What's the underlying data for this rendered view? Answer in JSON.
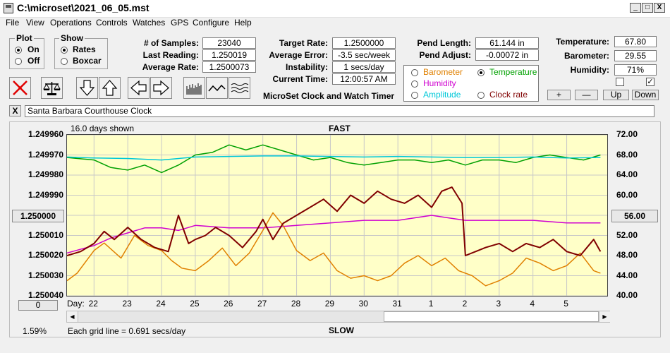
{
  "window": {
    "title": "C:\\microset\\2021_06_05.mst",
    "controls": {
      "minimize": "_",
      "maximize": "□",
      "close": "X"
    }
  },
  "menu": [
    "File",
    "View",
    "Operations",
    "Controls",
    "Watches",
    "GPS",
    "Configure",
    "Help"
  ],
  "plot_group": {
    "title": "Plot",
    "options": [
      "On",
      "Off"
    ],
    "selected": "On"
  },
  "show_group": {
    "title": "Show",
    "options": [
      "Rates",
      "Boxcar"
    ],
    "selected": "Rates"
  },
  "readouts": {
    "samples_label": "# of Samples:",
    "samples": "23040",
    "last_reading_label": "Last Reading:",
    "last_reading": "1.250019",
    "average_rate_label": "Average Rate:",
    "average_rate": "1.2500073",
    "target_rate_label": "Target Rate:",
    "target_rate": "1.2500000",
    "average_error_label": "Average Error:",
    "average_error": "-3.5 sec/week",
    "instability_label": "Instability:",
    "instability": "1 secs/day",
    "current_time_label": "Current Time:",
    "current_time": "12:00:57 AM",
    "pend_length_label": "Pend Length:",
    "pend_length": "61.144 in",
    "pend_adjust_label": "Pend Adjust:",
    "pend_adjust": "-0.00072 in",
    "temperature_label": "Temperature:",
    "temperature": "67.80",
    "barometer_label": "Barometer:",
    "barometer": "29.55",
    "humidity_label": "Humidity:",
    "humidity": "71%"
  },
  "app_caption": "MicroSet Clock and Watch Timer",
  "sensor_options": [
    {
      "label": "Barometer",
      "color": "#e08000",
      "selected": false
    },
    {
      "label": "Temperature",
      "color": "#00a000",
      "selected": true
    },
    {
      "label": "Humidity",
      "color": "#d000d0",
      "selected": false
    },
    {
      "label": "Amplitude",
      "color": "#00c8d8",
      "selected": false
    },
    {
      "label": "Clock rate",
      "color": "#800000",
      "selected": false
    }
  ],
  "scale_buttons": [
    "+",
    "—",
    "Up",
    "Down"
  ],
  "clock_name": "Santa Barbara Courthouse Clock",
  "clock_close": "X",
  "toolbar_icons": [
    "clear-icon",
    "balance-icon",
    "down-arrow-icon",
    "up-arrow-icon",
    "left-arrow-icon",
    "right-arrow-icon",
    "raw-plot-icon",
    "smooth-plot-icon",
    "wave-plot-icon"
  ],
  "graph": {
    "days_shown": "16.0 days shown",
    "top_label": "FAST",
    "bottom_label": "SLOW",
    "grid_note": "Each grid line = 0.691 secs/day",
    "percent": "1.59%",
    "left_center_button": "1.250000",
    "right_center_button": "56.00",
    "bottom_left_button": "0",
    "day_prefix": "Day:"
  },
  "chart_data": {
    "type": "line",
    "x_ticks": [
      "22",
      "23",
      "24",
      "25",
      "26",
      "27",
      "28",
      "29",
      "30",
      "31",
      "1",
      "2",
      "3",
      "4",
      "5"
    ],
    "y_left_ticks": [
      "1.249960",
      "1.249970",
      "1.249980",
      "1.249990",
      "1.250000",
      "1.250010",
      "1.250020",
      "1.250030",
      "1.250040"
    ],
    "y_right_ticks": [
      "72.00",
      "68.00",
      "64.00",
      "60.00",
      "56.00",
      "52.00",
      "48.00",
      "44.00",
      "40.00"
    ],
    "x_range": [
      21.2,
      37.2
    ],
    "y_left_range": [
      1.24996,
      1.25004
    ],
    "y_right_range": [
      40,
      72
    ],
    "grid": true,
    "series": [
      {
        "key": "temperature",
        "axis": "right",
        "color": "#00a000",
        "x": [
          21.2,
          22.0,
          22.5,
          23.0,
          23.5,
          24.0,
          24.5,
          25.0,
          25.5,
          26.0,
          26.5,
          27.0,
          27.5,
          28.0,
          28.5,
          29.0,
          29.5,
          30.0,
          30.5,
          31.0,
          31.5,
          32.0,
          32.5,
          33.0,
          33.5,
          34.0,
          34.5,
          35.0,
          35.5,
          36.0,
          36.5,
          37.0
        ],
        "y": [
          67.5,
          67.0,
          65.5,
          65.0,
          66.0,
          64.5,
          66.0,
          68.0,
          68.5,
          70.0,
          69.0,
          70.0,
          69.0,
          68.0,
          67.0,
          67.5,
          66.5,
          66.0,
          66.5,
          67.0,
          67.0,
          66.5,
          67.0,
          66.0,
          67.0,
          67.0,
          66.5,
          67.5,
          68.0,
          67.5,
          67.0,
          68.0
        ]
      },
      {
        "key": "amplitude",
        "axis": "right",
        "color": "#00c8d8",
        "x": [
          21.2,
          22.0,
          23.0,
          24.0,
          25.0,
          26.0,
          27.0,
          28.0,
          29.0,
          30.0,
          31.0,
          32.0,
          33.0,
          34.0,
          35.0,
          36.0,
          37.0
        ],
        "y": [
          67.6,
          67.4,
          67.3,
          67.0,
          67.6,
          67.7,
          67.8,
          67.8,
          67.7,
          67.6,
          67.7,
          67.6,
          67.5,
          67.5,
          67.6,
          67.4,
          67.5
        ]
      },
      {
        "key": "humidity",
        "axis": "right",
        "color": "#d000d0",
        "x": [
          21.2,
          22.0,
          22.5,
          23.0,
          23.5,
          24.0,
          24.5,
          25.0,
          26.0,
          27.0,
          28.0,
          29.0,
          30.0,
          31.0,
          32.0,
          32.5,
          33.0,
          34.0,
          35.0,
          36.0,
          37.0
        ],
        "y": [
          48.5,
          50.0,
          51.5,
          52.5,
          53.5,
          53.5,
          53.0,
          54.0,
          53.5,
          53.5,
          54.0,
          54.5,
          55.0,
          55.0,
          56.0,
          55.5,
          55.0,
          55.0,
          55.0,
          54.5,
          54.5
        ]
      },
      {
        "key": "barometer",
        "axis": "right",
        "color": "#e08000",
        "x": [
          21.2,
          21.5,
          22.0,
          22.3,
          22.8,
          23.2,
          23.6,
          24.0,
          24.3,
          24.6,
          25.0,
          25.4,
          25.8,
          26.2,
          26.6,
          27.0,
          27.3,
          27.6,
          28.0,
          28.4,
          28.8,
          29.2,
          29.6,
          30.0,
          30.4,
          30.8,
          31.2,
          31.6,
          32.0,
          32.4,
          32.8,
          33.2,
          33.6,
          34.0,
          34.4,
          34.8,
          35.2,
          35.6,
          36.0,
          36.4,
          36.8,
          37.0
        ],
        "y": [
          43.0,
          44.5,
          49.0,
          50.5,
          47.5,
          52.0,
          50.0,
          49.0,
          47.0,
          45.5,
          45.0,
          47.0,
          49.5,
          46.0,
          48.5,
          53.0,
          56.5,
          54.0,
          49.0,
          47.0,
          48.5,
          45.0,
          43.5,
          44.0,
          43.0,
          44.0,
          46.5,
          48.0,
          46.0,
          47.5,
          45.0,
          44.0,
          42.0,
          43.0,
          44.5,
          47.5,
          46.5,
          45.0,
          46.0,
          48.5,
          45.0,
          44.5
        ]
      },
      {
        "key": "clock_rate",
        "axis": "left",
        "color": "#800000",
        "x": [
          21.2,
          21.6,
          22.0,
          22.3,
          22.6,
          23.0,
          23.4,
          23.8,
          24.2,
          24.5,
          24.8,
          25.0,
          25.3,
          25.6,
          26.0,
          26.4,
          26.8,
          27.0,
          27.3,
          27.6,
          28.0,
          28.4,
          28.8,
          29.2,
          29.6,
          30.0,
          30.4,
          30.8,
          31.2,
          31.6,
          32.0,
          32.3,
          32.6,
          32.9,
          33.0,
          33.3,
          33.6,
          34.0,
          34.4,
          34.8,
          35.2,
          35.6,
          36.0,
          36.4,
          36.8,
          37.0
        ],
        "y": [
          1.25002,
          1.250018,
          1.250014,
          1.250008,
          1.250012,
          1.250006,
          1.250012,
          1.250016,
          1.250018,
          1.25,
          1.250014,
          1.250012,
          1.25001,
          1.250006,
          1.25001,
          1.250016,
          1.250008,
          1.250002,
          1.250012,
          1.250004,
          1.25,
          1.249996,
          1.249992,
          1.249998,
          1.24999,
          1.249994,
          1.249988,
          1.249992,
          1.249994,
          1.24999,
          1.249996,
          1.249988,
          1.249986,
          1.249994,
          1.25002,
          1.250018,
          1.250016,
          1.250014,
          1.250018,
          1.250014,
          1.250016,
          1.250012,
          1.250018,
          1.25002,
          1.250012,
          1.250018
        ]
      }
    ]
  }
}
